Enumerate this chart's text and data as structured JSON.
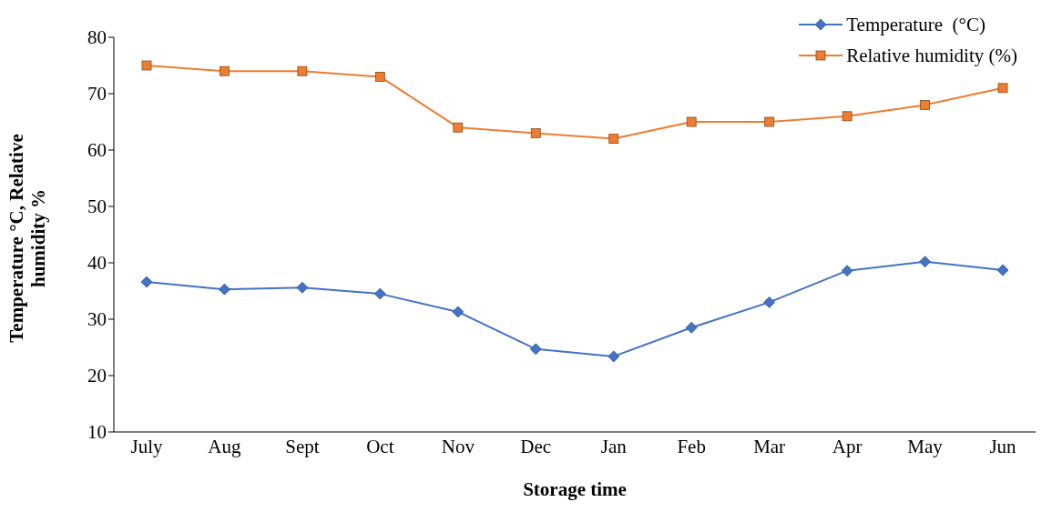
{
  "chart_data": {
    "type": "line",
    "xlabel": "Storage time",
    "ylabel": "Temperature °C, Relative humidity %",
    "categories": [
      "July",
      "Aug",
      "Sept",
      "Oct",
      "Nov",
      "Dec",
      "Jan",
      "Feb",
      "Mar",
      "Apr",
      "May",
      "Jun"
    ],
    "series": [
      {
        "name": "Temperature  (°C)",
        "color": "#4472c4",
        "marker": "diamond",
        "values": [
          36.6,
          35.3,
          35.6,
          34.5,
          31.3,
          24.7,
          23.4,
          28.5,
          33.0,
          38.6,
          40.2,
          38.7
        ]
      },
      {
        "name": "Relative humidity (%)",
        "color": "#ed7d31",
        "marker": "square",
        "values": [
          75,
          74,
          74,
          73,
          64,
          63,
          62,
          65,
          65,
          66,
          68,
          71
        ]
      }
    ],
    "ylim": [
      10,
      80
    ],
    "yticks": [
      10,
      20,
      30,
      40,
      50,
      60,
      70,
      80
    ],
    "grid": false,
    "legend": "top right"
  }
}
